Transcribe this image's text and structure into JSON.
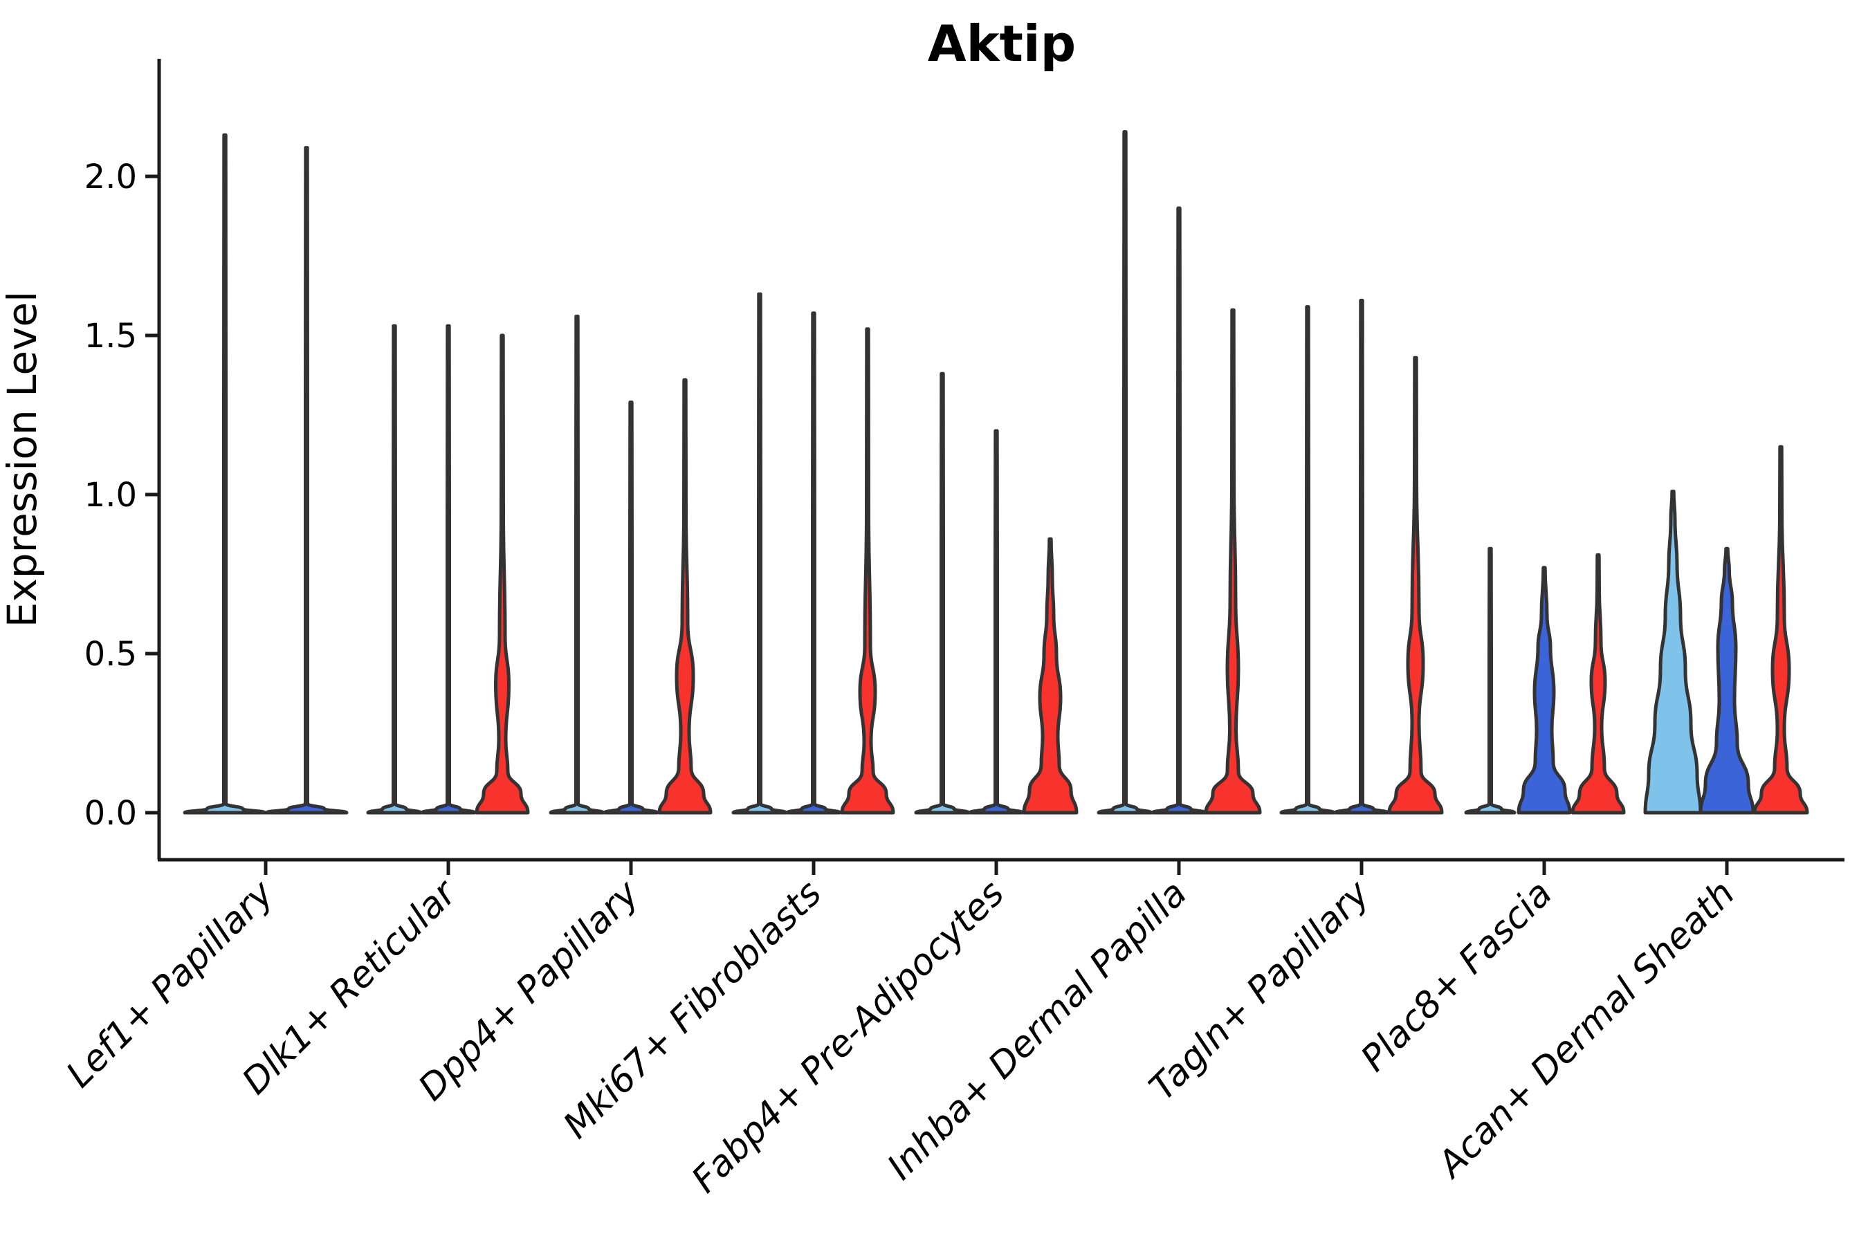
{
  "title": "Aktip",
  "axes": {
    "ylabel": "Expression Level",
    "ytick_labels": [
      "0.0",
      "0.5",
      "1.0",
      "1.5",
      "2.0"
    ]
  },
  "colors": {
    "split1_lightblue": "#7FC3EA",
    "split2_blue": "#3B64D8",
    "split3_red": "#F8332D",
    "violin_outline": "#333333",
    "axis_line": "#1a1a1a",
    "text": "#000000",
    "background": "#ffffff"
  },
  "chart_data": {
    "type": "violin",
    "title": "Aktip",
    "xlabel": "",
    "ylabel": "Expression Level",
    "ylim": [
      -0.08,
      2.38
    ],
    "yticks": [
      0.0,
      0.5,
      1.0,
      1.5,
      2.0
    ],
    "grid": false,
    "legend_position": "none",
    "split_fill_colors": [
      "#7FC3EA",
      "#3B64D8",
      "#F8332D"
    ],
    "categories": [
      "Lef1+ Papillary",
      "Dlk1+ Reticular",
      "Dpp4+ Papillary",
      "Mki67+ Fibroblasts",
      "Fabp4+ Pre-Adipocytes",
      "Inhba+ Dermal Papilla",
      "Tagln+ Papillary",
      "Plac8+ Fascia",
      "Acan+ Dermal Sheath"
    ],
    "groups": [
      {
        "label": "Lef1+ Papillary",
        "violins": [
          {
            "split": 1,
            "color": "split1_lightblue",
            "max_expression": 2.13,
            "shape": "spike",
            "profile": [
              [
                0,
                58
              ],
              [
                0.012,
                26
              ],
              [
                0.028,
                1.5
              ],
              [
                1.3,
                1.5
              ],
              [
                2.13,
                1.2
              ]
            ]
          },
          {
            "split": 2,
            "color": "split2_blue",
            "max_expression": 2.09,
            "shape": "spike",
            "profile": [
              [
                0,
                58
              ],
              [
                0.012,
                26
              ],
              [
                0.028,
                1.5
              ],
              [
                1.3,
                1.5
              ],
              [
                2.09,
                1.2
              ]
            ]
          }
        ]
      },
      {
        "label": "Dlk1+ Reticular",
        "violins": [
          {
            "split": 1,
            "color": "split1_lightblue",
            "max_expression": 1.53,
            "shape": "spike",
            "profile": [
              [
                0,
                38
              ],
              [
                0.012,
                17
              ],
              [
                0.028,
                1.5
              ],
              [
                0.9,
                1.5
              ],
              [
                1.53,
                1.2
              ]
            ]
          },
          {
            "split": 2,
            "color": "split2_blue",
            "max_expression": 1.53,
            "shape": "spike",
            "profile": [
              [
                0,
                38
              ],
              [
                0.012,
                17
              ],
              [
                0.028,
                1.5
              ],
              [
                0.9,
                1.5
              ],
              [
                1.53,
                1.2
              ]
            ]
          },
          {
            "split": 3,
            "color": "split3_red",
            "max_expression": 1.5,
            "shape": "bulge",
            "profile": [
              [
                0,
                37
              ],
              [
                0.06,
                27
              ],
              [
                0.13,
                8
              ],
              [
                0.23,
                5
              ],
              [
                0.4,
                9.5
              ],
              [
                0.56,
                4
              ],
              [
                0.95,
                1.5
              ],
              [
                1.5,
                1.2
              ]
            ]
          }
        ]
      },
      {
        "label": "Dpp4+ Papillary",
        "violins": [
          {
            "split": 1,
            "color": "split1_lightblue",
            "max_expression": 1.56,
            "shape": "spike",
            "profile": [
              [
                0,
                38
              ],
              [
                0.012,
                17
              ],
              [
                0.028,
                1.5
              ],
              [
                0.9,
                1.5
              ],
              [
                1.56,
                1.2
              ]
            ]
          },
          {
            "split": 2,
            "color": "split2_blue",
            "max_expression": 1.29,
            "shape": "spike",
            "profile": [
              [
                0,
                38
              ],
              [
                0.012,
                17
              ],
              [
                0.028,
                1.5
              ],
              [
                0.8,
                1.5
              ],
              [
                1.29,
                1.2
              ]
            ]
          },
          {
            "split": 3,
            "color": "split3_red",
            "max_expression": 1.36,
            "shape": "bulge",
            "profile": [
              [
                0,
                37
              ],
              [
                0.06,
                27
              ],
              [
                0.14,
                9
              ],
              [
                0.25,
                6
              ],
              [
                0.43,
                12
              ],
              [
                0.6,
                4
              ],
              [
                0.95,
                1.5
              ],
              [
                1.36,
                1.2
              ]
            ]
          }
        ]
      },
      {
        "label": "Mki67+ Fibroblasts",
        "violins": [
          {
            "split": 1,
            "color": "split1_lightblue",
            "max_expression": 1.63,
            "shape": "spike",
            "profile": [
              [
                0,
                38
              ],
              [
                0.012,
                17
              ],
              [
                0.028,
                1.5
              ],
              [
                0.95,
                1.5
              ],
              [
                1.63,
                1.2
              ]
            ]
          },
          {
            "split": 2,
            "color": "split2_blue",
            "max_expression": 1.57,
            "shape": "spike",
            "profile": [
              [
                0,
                38
              ],
              [
                0.012,
                17
              ],
              [
                0.028,
                1.5
              ],
              [
                0.9,
                1.5
              ],
              [
                1.57,
                1.2
              ]
            ]
          },
          {
            "split": 3,
            "color": "split3_red",
            "max_expression": 1.52,
            "shape": "bulge",
            "profile": [
              [
                0,
                37
              ],
              [
                0.06,
                27
              ],
              [
                0.13,
                8
              ],
              [
                0.22,
                5
              ],
              [
                0.38,
                11
              ],
              [
                0.53,
                4
              ],
              [
                0.95,
                1.5
              ],
              [
                1.52,
                1.2
              ]
            ]
          }
        ]
      },
      {
        "label": "Fabp4+ Pre-Adipocytes",
        "violins": [
          {
            "split": 1,
            "color": "split1_lightblue",
            "max_expression": 1.38,
            "shape": "spike",
            "profile": [
              [
                0,
                38
              ],
              [
                0.012,
                17
              ],
              [
                0.028,
                1.5
              ],
              [
                0.85,
                1.5
              ],
              [
                1.38,
                1.2
              ]
            ]
          },
          {
            "split": 2,
            "color": "split2_blue",
            "max_expression": 1.2,
            "shape": "spike",
            "profile": [
              [
                0,
                38
              ],
              [
                0.012,
                17
              ],
              [
                0.028,
                1.5
              ],
              [
                0.75,
                1.5
              ],
              [
                1.2,
                1.2
              ]
            ]
          },
          {
            "split": 3,
            "color": "split3_red",
            "max_expression": 0.86,
            "shape": "bulge",
            "profile": [
              [
                0,
                38
              ],
              [
                0.07,
                30
              ],
              [
                0.15,
                13
              ],
              [
                0.24,
                11
              ],
              [
                0.36,
                15
              ],
              [
                0.5,
                9
              ],
              [
                0.62,
                5
              ],
              [
                0.74,
                3
              ],
              [
                0.86,
                1.2
              ]
            ]
          }
        ]
      },
      {
        "label": "Inhba+ Dermal Papilla",
        "violins": [
          {
            "split": 1,
            "color": "split1_lightblue",
            "max_expression": 2.14,
            "shape": "spike",
            "profile": [
              [
                0,
                38
              ],
              [
                0.012,
                17
              ],
              [
                0.028,
                1.5
              ],
              [
                1.3,
                1.5
              ],
              [
                2.14,
                1.2
              ]
            ]
          },
          {
            "split": 2,
            "color": "split2_blue",
            "max_expression": 1.9,
            "shape": "spike",
            "profile": [
              [
                0,
                38
              ],
              [
                0.012,
                17
              ],
              [
                0.028,
                1.5
              ],
              [
                1.15,
                1.5
              ],
              [
                1.9,
                1.2
              ]
            ]
          },
          {
            "split": 3,
            "color": "split3_red",
            "max_expression": 1.58,
            "shape": "bulge",
            "profile": [
              [
                0,
                39
              ],
              [
                0.06,
                29
              ],
              [
                0.13,
                8
              ],
              [
                0.26,
                4.5
              ],
              [
                0.45,
                8
              ],
              [
                0.66,
                4
              ],
              [
                1.05,
                1.5
              ],
              [
                1.58,
                1.2
              ]
            ]
          }
        ]
      },
      {
        "label": "Tagln+ Papillary",
        "violins": [
          {
            "split": 1,
            "color": "split1_lightblue",
            "max_expression": 1.59,
            "shape": "spike",
            "profile": [
              [
                0,
                38
              ],
              [
                0.012,
                17
              ],
              [
                0.028,
                1.5
              ],
              [
                0.95,
                1.5
              ],
              [
                1.59,
                1.2
              ]
            ]
          },
          {
            "split": 2,
            "color": "split2_blue",
            "max_expression": 1.61,
            "shape": "spike",
            "profile": [
              [
                0,
                38
              ],
              [
                0.012,
                17
              ],
              [
                0.028,
                1.5
              ],
              [
                0.95,
                1.5
              ],
              [
                1.61,
                1.2
              ]
            ]
          },
          {
            "split": 3,
            "color": "split3_red",
            "max_expression": 1.43,
            "shape": "bulge",
            "profile": [
              [
                0,
                38
              ],
              [
                0.06,
                28
              ],
              [
                0.13,
                8
              ],
              [
                0.28,
                5
              ],
              [
                0.47,
                11
              ],
              [
                0.64,
                5
              ],
              [
                1.05,
                1.5
              ],
              [
                1.43,
                1.2
              ]
            ]
          }
        ]
      },
      {
        "label": "Plac8+ Fascia",
        "violins": [
          {
            "split": 1,
            "color": "split1_lightblue",
            "max_expression": 0.83,
            "shape": "spike",
            "profile": [
              [
                0,
                35
              ],
              [
                0.012,
                16
              ],
              [
                0.028,
                1.5
              ],
              [
                0.5,
                1.5
              ],
              [
                0.83,
                1.2
              ]
            ]
          },
          {
            "split": 2,
            "color": "split2_blue",
            "max_expression": 0.77,
            "shape": "bulge",
            "profile": [
              [
                0,
                37
              ],
              [
                0.07,
                30
              ],
              [
                0.16,
                13
              ],
              [
                0.26,
                11
              ],
              [
                0.38,
                14
              ],
              [
                0.52,
                9
              ],
              [
                0.62,
                4
              ],
              [
                0.77,
                1.2
              ]
            ]
          },
          {
            "split": 3,
            "color": "split3_red",
            "max_expression": 0.81,
            "shape": "bulge",
            "profile": [
              [
                0,
                37
              ],
              [
                0.06,
                27
              ],
              [
                0.14,
                9
              ],
              [
                0.27,
                5
              ],
              [
                0.41,
                10
              ],
              [
                0.54,
                4
              ],
              [
                0.7,
                1.5
              ],
              [
                0.81,
                1.2
              ]
            ]
          }
        ]
      },
      {
        "label": "Acan+ Dermal Sheath",
        "violins": [
          {
            "split": 1,
            "color": "split1_lightblue",
            "max_expression": 1.01,
            "shape": "flame",
            "profile": [
              [
                0,
                40
              ],
              [
                0.12,
                35
              ],
              [
                0.28,
                26
              ],
              [
                0.45,
                18
              ],
              [
                0.62,
                11
              ],
              [
                0.78,
                6
              ],
              [
                0.92,
                3
              ],
              [
                1.01,
                1.2
              ]
            ]
          },
          {
            "split": 2,
            "color": "split2_blue",
            "max_expression": 0.83,
            "shape": "flame",
            "profile": [
              [
                0,
                38
              ],
              [
                0.09,
                31
              ],
              [
                0.22,
                15
              ],
              [
                0.35,
                11
              ],
              [
                0.52,
                13
              ],
              [
                0.66,
                8
              ],
              [
                0.76,
                3.5
              ],
              [
                0.83,
                1.2
              ]
            ]
          },
          {
            "split": 3,
            "color": "split3_red",
            "max_expression": 1.15,
            "shape": "bulge",
            "profile": [
              [
                0,
                38
              ],
              [
                0.06,
                28
              ],
              [
                0.14,
                9
              ],
              [
                0.26,
                5
              ],
              [
                0.45,
                12
              ],
              [
                0.62,
                5
              ],
              [
                0.95,
                1.5
              ],
              [
                1.15,
                1.2
              ]
            ]
          }
        ]
      }
    ]
  }
}
